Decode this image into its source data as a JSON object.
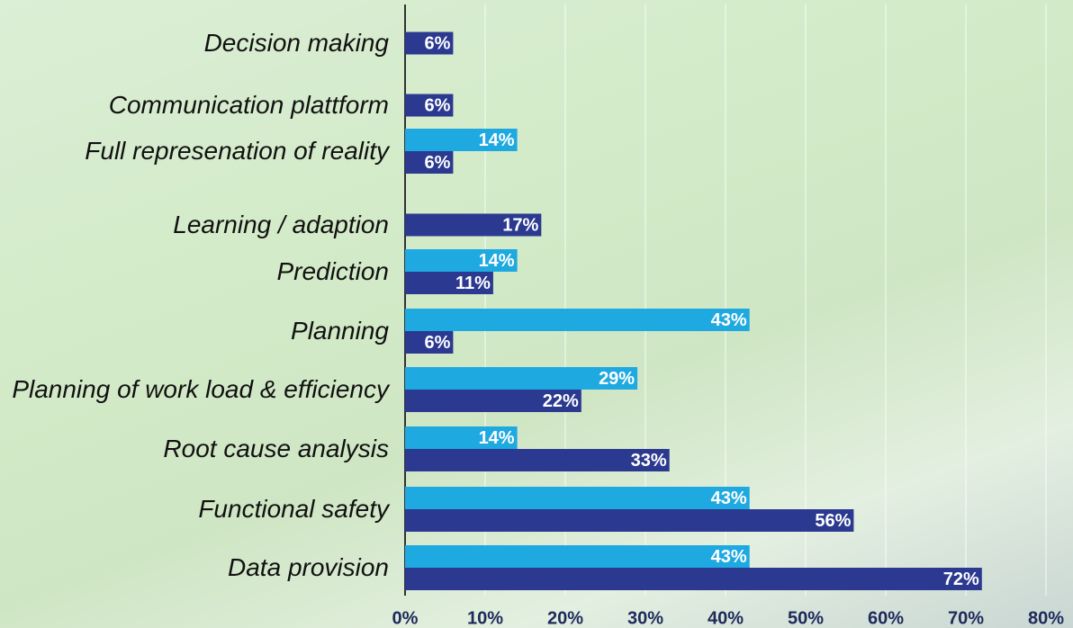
{
  "chart_data": {
    "type": "bar",
    "orientation": "horizontal",
    "categories": [
      "Decision making",
      "Communication plattform",
      "Full represenation of reality",
      "Learning / adaption",
      "Prediction",
      "Planning",
      "Planning of work load & efficiency",
      "Root cause analysis",
      "Functional safety",
      "Data provision"
    ],
    "series": [
      {
        "color": "#1fa9e1",
        "values": [
          null,
          null,
          14,
          null,
          14,
          43,
          29,
          14,
          43,
          43
        ],
        "value_labels": [
          null,
          null,
          "14%",
          null,
          "14%",
          "43%",
          "29%",
          "14%",
          "43%",
          "43%"
        ]
      },
      {
        "color": "#2b3990",
        "values": [
          6,
          6,
          6,
          17,
          11,
          6,
          22,
          33,
          56,
          72
        ],
        "value_labels": [
          "6%",
          "6%",
          "6%",
          "17%",
          "11%",
          "6%",
          "22%",
          "33%",
          "56%",
          "72%"
        ]
      }
    ],
    "xlim": [
      0,
      80
    ],
    "xticks": [
      {
        "value": 0,
        "label": "0%"
      },
      {
        "value": 10,
        "label": "10%"
      },
      {
        "value": 20,
        "label": "20%"
      },
      {
        "value": 30,
        "label": "30%"
      },
      {
        "value": 40,
        "label": "40%"
      },
      {
        "value": 50,
        "label": "50%"
      },
      {
        "value": 60,
        "label": "60%"
      },
      {
        "value": 70,
        "label": "70%"
      },
      {
        "value": 80,
        "label": "80%"
      }
    ],
    "grid": true
  }
}
